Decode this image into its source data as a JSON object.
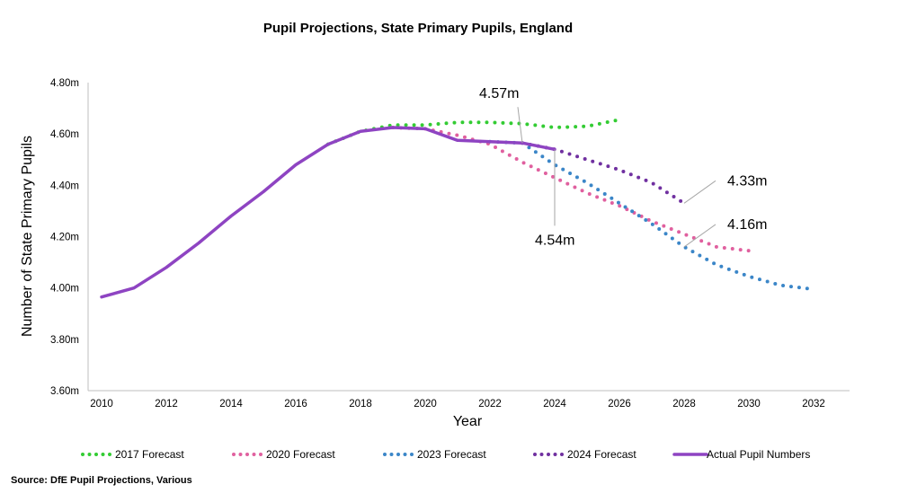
{
  "chart_data": {
    "type": "line",
    "title": "Pupil Projections, State Primary Pupils, England",
    "xlabel": "Year",
    "ylabel": "Number of State Primary Pupils",
    "xlim": [
      2010,
      2033.5
    ],
    "ylim": [
      3.6,
      4.8
    ],
    "x_ticks": [
      "2010",
      "2012",
      "2014",
      "2016",
      "2018",
      "2020",
      "2022",
      "2024",
      "2026",
      "2028",
      "2030",
      "2032"
    ],
    "y_ticks": [
      "3.60m",
      "3.80m",
      "4.00m",
      "4.20m",
      "4.40m",
      "4.60m",
      "4.80m"
    ],
    "grid": false,
    "legend_position": "bottom",
    "series": [
      {
        "name": "2017 Forecast",
        "color": "#33cc33",
        "style": "dotted",
        "x": [
          2017,
          2018,
          2019,
          2020,
          2021,
          2022,
          2023,
          2024,
          2025,
          2026
        ],
        "y": [
          4.56,
          4.61,
          4.635,
          4.635,
          4.645,
          4.645,
          4.64,
          4.625,
          4.63,
          4.655
        ]
      },
      {
        "name": "2020 Forecast",
        "color": "#e0609f",
        "style": "dotted",
        "x": [
          2019,
          2020,
          2021,
          2022,
          2023,
          2024,
          2025,
          2026,
          2027,
          2028,
          2029,
          2030
        ],
        "y": [
          4.625,
          4.62,
          4.595,
          4.56,
          4.49,
          4.43,
          4.37,
          4.32,
          4.26,
          4.21,
          4.16,
          4.145
        ]
      },
      {
        "name": "2023 Forecast",
        "color": "#3b86c8",
        "style": "dotted",
        "x": [
          2022,
          2023,
          2024,
          2025,
          2026,
          2027,
          2028,
          2029,
          2030,
          2031,
          2032
        ],
        "y": [
          4.57,
          4.565,
          4.48,
          4.41,
          4.33,
          4.25,
          4.16,
          4.09,
          4.045,
          4.01,
          3.995
        ]
      },
      {
        "name": "2024 Forecast",
        "color": "#7030a0",
        "style": "dotted",
        "x": [
          2023,
          2024,
          2025,
          2026,
          2027,
          2028
        ],
        "y": [
          4.565,
          4.54,
          4.5,
          4.46,
          4.41,
          4.33
        ]
      },
      {
        "name": "Actual Pupil Numbers",
        "color": "#8e44c2",
        "style": "solid",
        "x": [
          2010,
          2011,
          2012,
          2013,
          2014,
          2015,
          2016,
          2017,
          2018,
          2019,
          2020,
          2021,
          2022,
          2023,
          2024
        ],
        "y": [
          3.965,
          4.0,
          4.08,
          4.175,
          4.28,
          4.375,
          4.48,
          4.56,
          4.61,
          4.625,
          4.62,
          4.575,
          4.57,
          4.565,
          4.54
        ]
      }
    ],
    "annotations": [
      {
        "text": "4.57m",
        "x": 2023,
        "y": 4.565,
        "placement": "above-left"
      },
      {
        "text": "4.54m",
        "x": 2024,
        "y": 4.54,
        "placement": "below"
      },
      {
        "text": "4.33m",
        "x": 2028,
        "y": 4.33,
        "placement": "upper-right"
      },
      {
        "text": "4.16m",
        "x": 2028,
        "y": 4.16,
        "placement": "upper-right"
      }
    ],
    "source": "Source: DfE Pupil Projections, Various"
  }
}
